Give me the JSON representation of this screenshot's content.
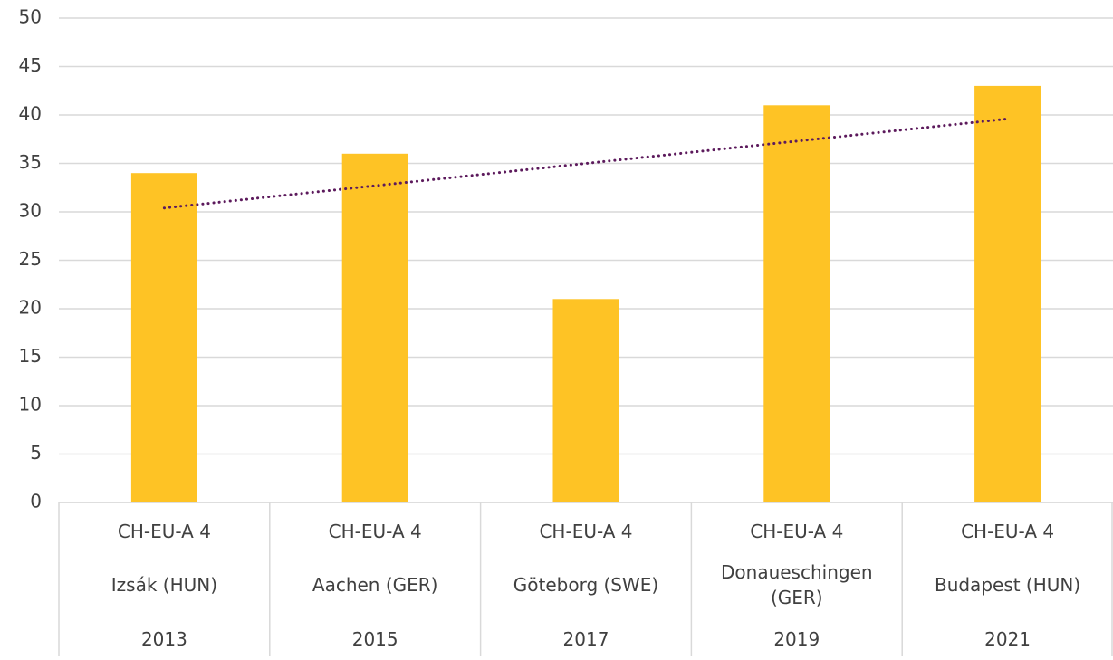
{
  "chart_data": {
    "type": "bar",
    "categories": [
      [
        "CH-EU-A 4",
        "Izsák (HUN)",
        "2013"
      ],
      [
        "CH-EU-A 4",
        "Aachen (GER)",
        "2015"
      ],
      [
        "CH-EU-A 4",
        "Göteborg (SWE)",
        "2017"
      ],
      [
        "CH-EU-A 4",
        "Donaueschingen (GER)",
        "2019"
      ],
      [
        "CH-EU-A 4",
        "Budapest (HUN)",
        "2021"
      ]
    ],
    "values": [
      34,
      36,
      21,
      41,
      43
    ],
    "color": "#fec325",
    "ylim": [
      0,
      50
    ],
    "yticks": [
      0,
      5,
      10,
      15,
      20,
      25,
      30,
      35,
      40,
      45,
      50
    ],
    "grid": true,
    "trendline": {
      "type": "linear",
      "color": "#5c1a5c",
      "values": [
        30.4,
        39.6
      ]
    }
  }
}
